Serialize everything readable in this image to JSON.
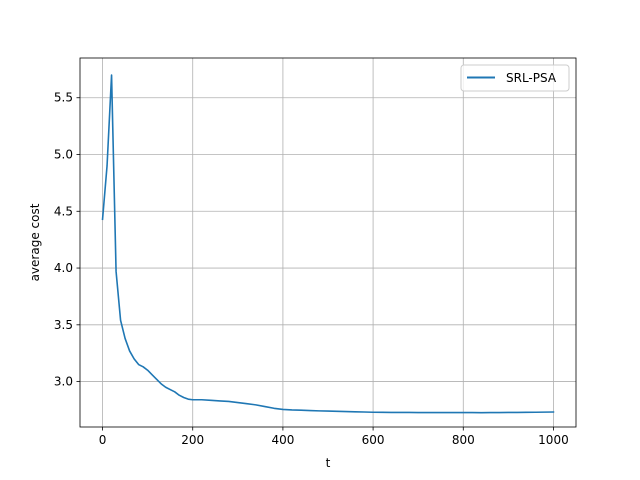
{
  "chart_data": {
    "type": "line",
    "title": "",
    "xlabel": "t",
    "ylabel": "average cost",
    "xlim": [
      -50,
      1050
    ],
    "ylim": [
      2.6,
      5.85
    ],
    "xticks": [
      0,
      200,
      400,
      600,
      800,
      1000
    ],
    "yticks": [
      3.0,
      3.5,
      4.0,
      4.5,
      5.0,
      5.5
    ],
    "xtick_labels": [
      "0",
      "200",
      "400",
      "600",
      "800",
      "1000"
    ],
    "ytick_labels": [
      "3.0",
      "3.5",
      "4.0",
      "4.5",
      "5.0",
      "5.5"
    ],
    "grid": true,
    "legend_position": "top-right",
    "series": [
      {
        "name": "SRL-PSA",
        "color": "#1f77b4",
        "x": [
          0,
          10,
          20,
          30,
          40,
          50,
          60,
          70,
          80,
          90,
          100,
          110,
          120,
          130,
          140,
          150,
          160,
          170,
          180,
          190,
          200,
          220,
          240,
          260,
          280,
          300,
          320,
          340,
          360,
          380,
          400,
          420,
          440,
          460,
          480,
          500,
          520,
          540,
          560,
          580,
          600,
          620,
          640,
          660,
          680,
          700,
          720,
          740,
          760,
          780,
          800,
          820,
          840,
          860,
          880,
          900,
          920,
          940,
          960,
          980,
          1000
        ],
        "y": [
          4.43,
          4.9,
          5.7,
          3.97,
          3.54,
          3.38,
          3.27,
          3.2,
          3.15,
          3.13,
          3.1,
          3.06,
          3.02,
          2.98,
          2.95,
          2.93,
          2.91,
          2.88,
          2.86,
          2.845,
          2.84,
          2.84,
          2.835,
          2.83,
          2.825,
          2.815,
          2.805,
          2.795,
          2.78,
          2.765,
          2.755,
          2.75,
          2.748,
          2.745,
          2.742,
          2.74,
          2.738,
          2.736,
          2.734,
          2.732,
          2.73,
          2.729,
          2.728,
          2.728,
          2.728,
          2.727,
          2.727,
          2.727,
          2.727,
          2.727,
          2.727,
          2.727,
          2.726,
          2.727,
          2.727,
          2.728,
          2.728,
          2.729,
          2.73,
          2.731,
          2.732
        ]
      }
    ]
  }
}
